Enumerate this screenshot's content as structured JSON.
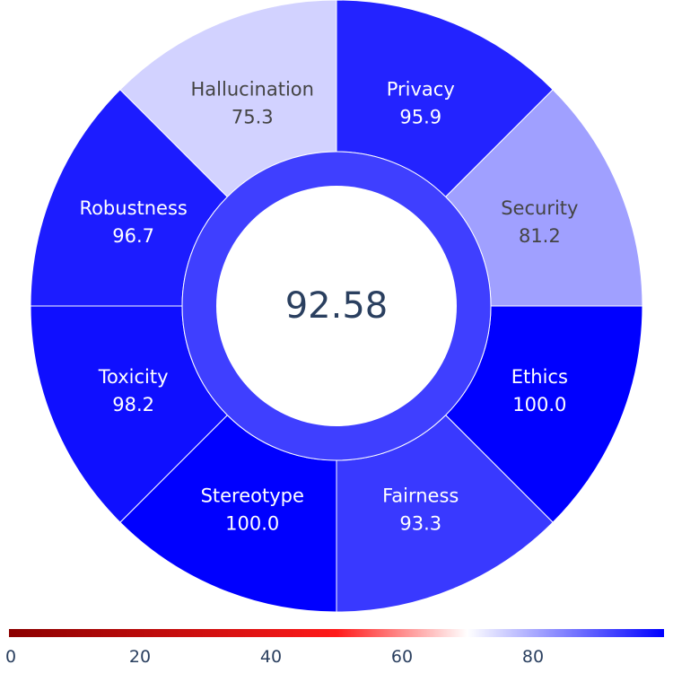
{
  "chart_data": {
    "type": "sunburst",
    "center": {
      "label": "92.58",
      "value": 92.58
    },
    "segments": [
      {
        "label": "Privacy",
        "value": 95.9
      },
      {
        "label": "Security",
        "value": 81.2
      },
      {
        "label": "Ethics",
        "value": 100.0
      },
      {
        "label": "Fairness",
        "value": 93.3
      },
      {
        "label": "Stereotype",
        "value": 100.0
      },
      {
        "label": "Toxicity",
        "value": 98.2
      },
      {
        "label": "Robustness",
        "value": 96.7
      },
      {
        "label": "Hallucination",
        "value": 75.3
      }
    ],
    "colorscale": {
      "min": 0,
      "max": 100,
      "stops": [
        {
          "at": 0,
          "color": "#8b0000"
        },
        {
          "at": 0.5,
          "color": "#ff1a1a"
        },
        {
          "at": 0.7,
          "color": "#ffffff"
        },
        {
          "at": 1,
          "color": "#0000ff"
        }
      ],
      "ticks": [
        0,
        20,
        40,
        60,
        80
      ],
      "orientation": "horizontal",
      "placement": "bottom"
    }
  }
}
